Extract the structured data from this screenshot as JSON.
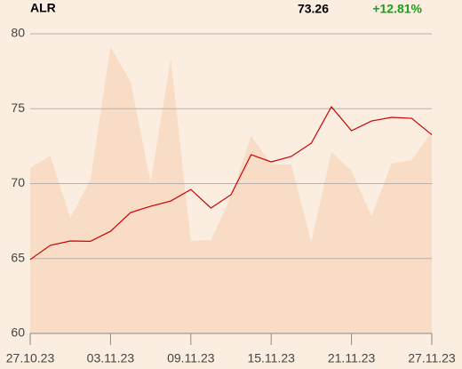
{
  "header": {
    "symbol": "ALR",
    "price": "73.26",
    "change": "+12.81%",
    "change_color": "#1a9e1a"
  },
  "chart_data": {
    "type": "line",
    "categories": [
      "27.10.23",
      null,
      null,
      null,
      "03.11.23",
      null,
      null,
      null,
      "09.11.23",
      null,
      null,
      null,
      "15.11.23",
      null,
      null,
      null,
      "21.11.23",
      null,
      null,
      null,
      "27.11.23"
    ],
    "series": [
      {
        "kind": "area",
        "color": "#f8dcc5",
        "values": [
          71.04,
          71.87,
          67.72,
          70.27,
          79.11,
          76.8,
          70.09,
          78.34,
          66.17,
          66.23,
          69.14,
          73.18,
          71.28,
          71.28,
          66.11,
          72.11,
          70.86,
          67.83,
          71.34,
          71.57,
          73.47
        ]
      },
      {
        "kind": "line",
        "color": "#cc0000",
        "values": [
          64.93,
          65.88,
          66.17,
          66.15,
          66.82,
          68.07,
          68.49,
          68.84,
          69.61,
          68.37,
          69.26,
          71.93,
          71.45,
          71.81,
          72.7,
          75.13,
          73.53,
          74.18,
          74.42,
          74.36,
          73.26
        ]
      }
    ],
    "ylim": [
      60,
      80
    ],
    "yticks": [
      60,
      65,
      70,
      75,
      80
    ],
    "grid": true
  }
}
